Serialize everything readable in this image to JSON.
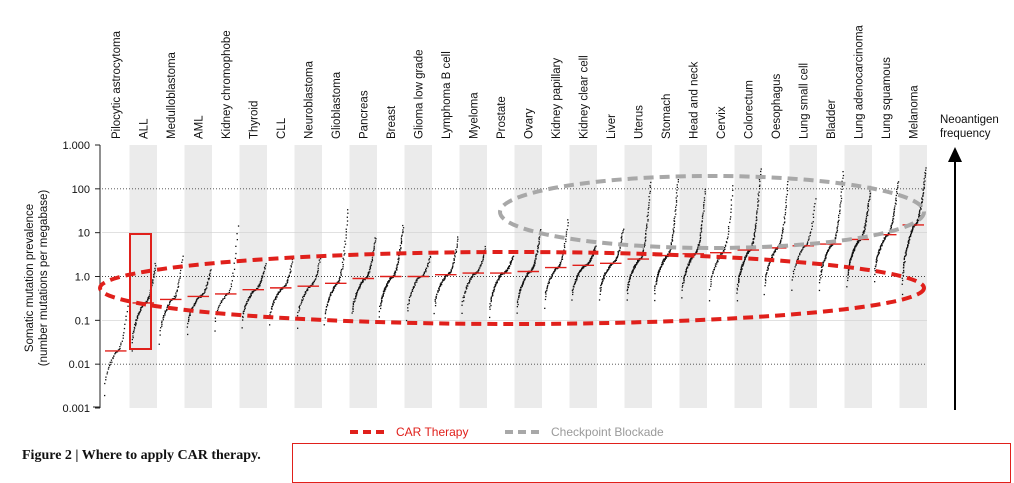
{
  "chart_data": {
    "type": "scatter",
    "ylabel": [
      "Somatic mutation prevalence",
      "(number mutations per megabase)"
    ],
    "yscale": "log",
    "ylim": [
      0.001,
      1000
    ],
    "yticks": [
      {
        "value": 1000,
        "label": "1.000"
      },
      {
        "value": 100,
        "label": "100"
      },
      {
        "value": 10,
        "label": "10"
      },
      {
        "value": 1,
        "label": "1.0"
      },
      {
        "value": 0.1,
        "label": "0.1"
      },
      {
        "value": 0.01,
        "label": "0.01"
      },
      {
        "value": 0.001,
        "label": "0.001"
      }
    ],
    "grid": "dotted horizontal at 100, 1.0 and 0.01; alternating grey column shading",
    "categories": [
      "Pilocytic astrocytoma",
      "ALL",
      "Medulloblastoma",
      "AML",
      "Kidney chromophobe",
      "Thyroid",
      "CLL",
      "Neuroblastoma",
      "Glioblastoma",
      "Pancreas",
      "Breast",
      "Glioma low grade",
      "Lymphoma B cell",
      "Myeloma",
      "Prostate",
      "Ovary",
      "Kidney papillary",
      "Kidney clear cell",
      "Liver",
      "Uterus",
      "Stomach",
      "Head and neck",
      "Cervix",
      "Colorectum",
      "Oesophagus",
      "Lung small cell",
      "Bladder",
      "Lung adenocarcinoma",
      "Lung squamous",
      "Melanoma"
    ],
    "series": [
      {
        "role": "median mutation prevalence per cancer type",
        "values": [
          0.02,
          0.25,
          0.3,
          0.35,
          0.4,
          0.5,
          0.55,
          0.6,
          0.7,
          0.9,
          1.0,
          1.0,
          1.1,
          1.2,
          1.2,
          1.3,
          1.6,
          1.8,
          2.0,
          2.5,
          3.0,
          3.3,
          3.5,
          4.0,
          4.5,
          5.0,
          5.5,
          7.0,
          9.0,
          15.0
        ],
        "spread_low": [
          0.002,
          0.02,
          0.03,
          0.05,
          0.06,
          0.07,
          0.08,
          0.07,
          0.08,
          0.1,
          0.12,
          0.1,
          0.15,
          0.15,
          0.12,
          0.15,
          0.2,
          0.3,
          0.3,
          0.3,
          0.3,
          0.35,
          0.3,
          0.3,
          0.4,
          0.5,
          0.5,
          0.6,
          0.8,
          0.4
        ],
        "spread_high": [
          0.3,
          2,
          3,
          1.5,
          15,
          2,
          3,
          3,
          35,
          8,
          15,
          3,
          8,
          5,
          3,
          12,
          20,
          5,
          12,
          150,
          200,
          100,
          120,
          300,
          150,
          60,
          250,
          120,
          150,
          300
        ]
      }
    ],
    "annotations": [
      {
        "label": "CAR Therapy",
        "shape": "red dashed ellipse around low-mutation band; red box around ALL",
        "color": "#e0201b"
      },
      {
        "label": "Checkpoint Blockade",
        "shape": "grey dashed ellipse around high-mutation band",
        "color": "#9a9a9a"
      }
    ],
    "side_axis_label": [
      "Neoantigen",
      "frequency"
    ]
  },
  "legend": {
    "car": "CAR Therapy",
    "cb": "Checkpoint Blockade"
  },
  "caption": "Figure 2 | Where to apply CAR therapy."
}
